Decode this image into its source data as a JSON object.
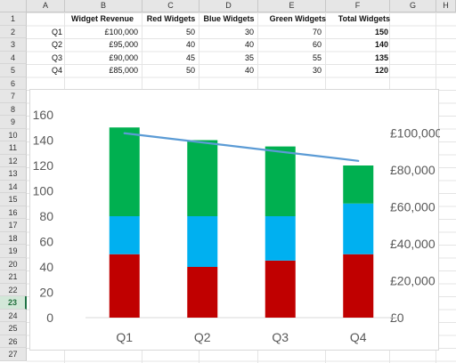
{
  "spreadsheet": {
    "columns": [
      "A",
      "B",
      "C",
      "D",
      "E",
      "F",
      "G",
      "H"
    ],
    "rows": [
      "1",
      "2",
      "3",
      "4",
      "5",
      "6",
      "7",
      "8",
      "9",
      "10",
      "11",
      "12",
      "13",
      "14",
      "15",
      "16",
      "17",
      "18",
      "19",
      "20",
      "21",
      "22",
      "23",
      "24",
      "25",
      "26",
      "27"
    ],
    "selected_row": "23",
    "headers": {
      "revenue": "Widget Revenue",
      "red": "Red Widgets",
      "blue": "Blue Widgets",
      "green": "Green Widgets",
      "total": "Total Widgets"
    },
    "data_rows": [
      {
        "quarter": "Q1",
        "revenue": "£100,000",
        "red": "50",
        "blue": "30",
        "green": "70",
        "total": "150"
      },
      {
        "quarter": "Q2",
        "revenue": "£95,000",
        "red": "40",
        "blue": "40",
        "green": "60",
        "total": "140"
      },
      {
        "quarter": "Q3",
        "revenue": "£90,000",
        "red": "45",
        "blue": "35",
        "green": "55",
        "total": "135"
      },
      {
        "quarter": "Q4",
        "revenue": "£85,000",
        "red": "50",
        "blue": "40",
        "green": "30",
        "total": "120"
      }
    ]
  },
  "chart_data": {
    "type": "bar",
    "stacked": true,
    "categories": [
      "Q1",
      "Q2",
      "Q3",
      "Q4"
    ],
    "series": [
      {
        "values": [
          50,
          40,
          45,
          50
        ],
        "color": "#c00000"
      },
      {
        "values": [
          30,
          40,
          35,
          40
        ],
        "color": "#00b0f0"
      },
      {
        "values": [
          70,
          60,
          55,
          30
        ],
        "color": "#00b050"
      }
    ],
    "line_series": {
      "values": [
        100000,
        95000,
        90000,
        85000
      ],
      "color": "#5b9bd5",
      "axis": "secondary"
    },
    "ylim": [
      0,
      160
    ],
    "yticks": [
      "0",
      "20",
      "40",
      "60",
      "80",
      "100",
      "120",
      "140",
      "160"
    ],
    "y2lim": [
      0,
      110000
    ],
    "y2ticks": [
      {
        "value": 0,
        "label": "£0"
      },
      {
        "value": 20000,
        "label": "£20,000"
      },
      {
        "value": 40000,
        "label": "£40,000"
      },
      {
        "value": 60000,
        "label": "£60,000"
      },
      {
        "value": 80000,
        "label": "£80,000"
      },
      {
        "value": 100000,
        "label": "£100,000"
      }
    ],
    "grid": false,
    "legend": "none"
  }
}
